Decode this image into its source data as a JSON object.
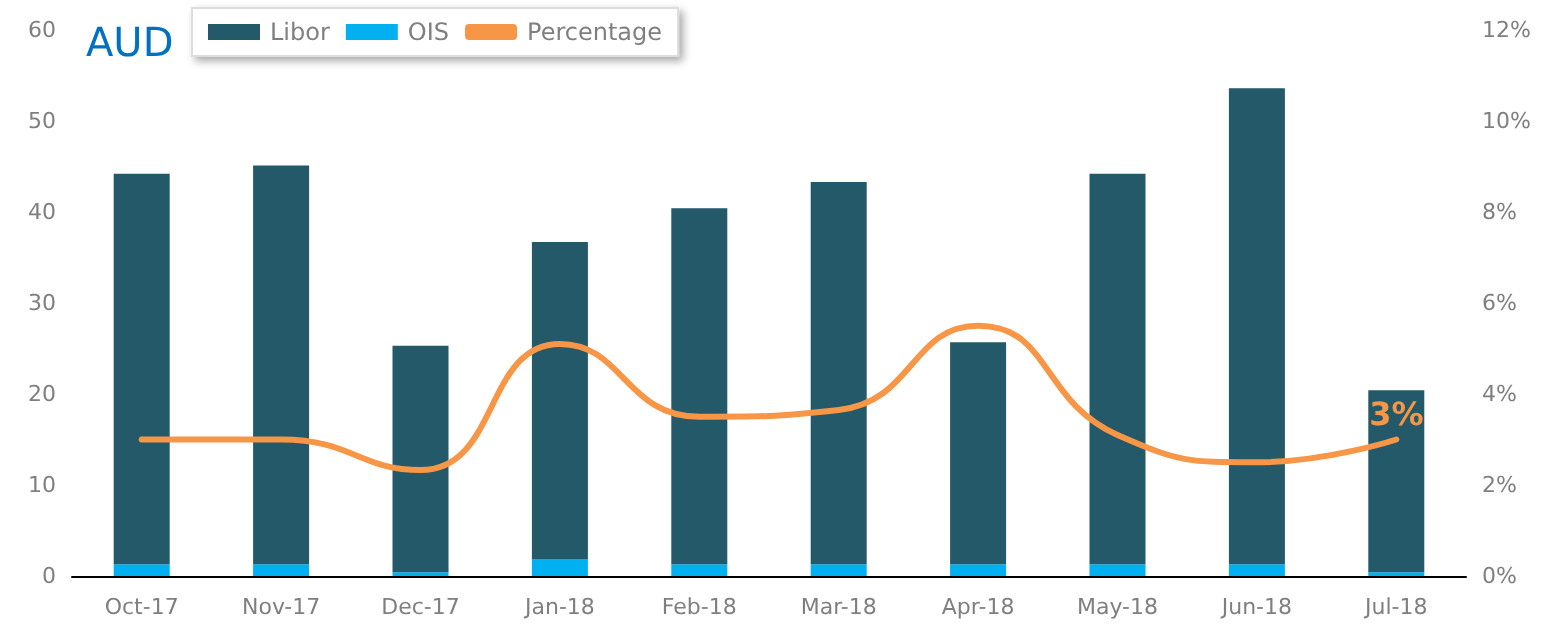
{
  "chart_data": {
    "type": "bar",
    "title": "AUD",
    "categories": [
      "Oct-17",
      "Nov-17",
      "Dec-17",
      "Jan-18",
      "Feb-18",
      "Mar-18",
      "Apr-18",
      "May-18",
      "Jun-18",
      "Jul-18"
    ],
    "stacked": true,
    "series": [
      {
        "name": "OIS",
        "color": "#00b0f0",
        "values": [
          1.3,
          1.3,
          0.4,
          1.8,
          1.3,
          1.3,
          1.3,
          1.3,
          1.3,
          0.4
        ]
      },
      {
        "name": "Libor",
        "color": "#235968",
        "values": [
          42.9,
          43.8,
          24.9,
          34.9,
          39.1,
          42.0,
          24.4,
          42.9,
          52.3,
          20.0
        ]
      },
      {
        "name": "Percentage",
        "type": "line",
        "axis": "y2",
        "color": "#f79646",
        "values": [
          3.0,
          3.0,
          2.33,
          5.1,
          3.5,
          3.65,
          5.5,
          3.1,
          2.5,
          3.0
        ],
        "value_labels": [
          null,
          null,
          null,
          null,
          null,
          null,
          null,
          null,
          null,
          "3%"
        ]
      }
    ],
    "ylim": [
      0,
      60
    ],
    "yticks": [
      0,
      10,
      20,
      30,
      40,
      50,
      60
    ],
    "y2lim": [
      0,
      12
    ],
    "y2ticks": [
      {
        "value": 0,
        "label": "0%"
      },
      {
        "value": 2,
        "label": "2%"
      },
      {
        "value": 4,
        "label": "4%"
      },
      {
        "value": 6,
        "label": "6%"
      },
      {
        "value": 8,
        "label": "8%"
      },
      {
        "value": 10,
        "label": "10%"
      },
      {
        "value": 12,
        "label": "12%"
      }
    ],
    "grid": false,
    "legend": "top",
    "marker": "none"
  }
}
